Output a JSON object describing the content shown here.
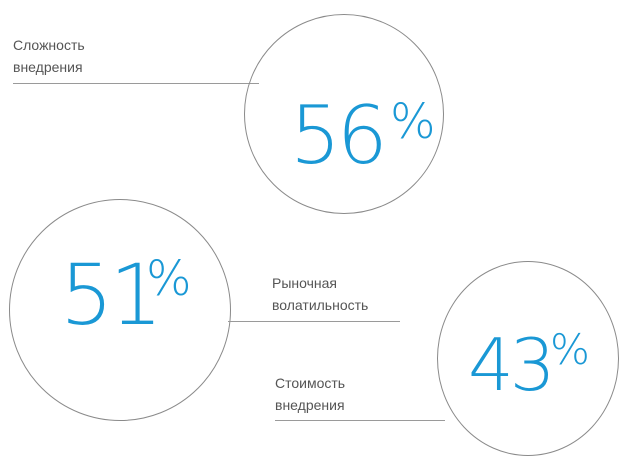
{
  "stats": [
    {
      "value": "56",
      "unit": "%",
      "label": [
        "Сложность",
        "внедрения"
      ]
    },
    {
      "value": "51",
      "unit": "%",
      "label": [
        "Рыночная",
        "волатильность"
      ]
    },
    {
      "value": "43",
      "unit": "%",
      "label": [
        "Стоимость",
        "внедрения"
      ]
    }
  ],
  "colors": {
    "accent": "#1a98d5",
    "circle_border": "#8a8a8a",
    "label_text": "#555555",
    "rule": "#9a9a9a"
  }
}
